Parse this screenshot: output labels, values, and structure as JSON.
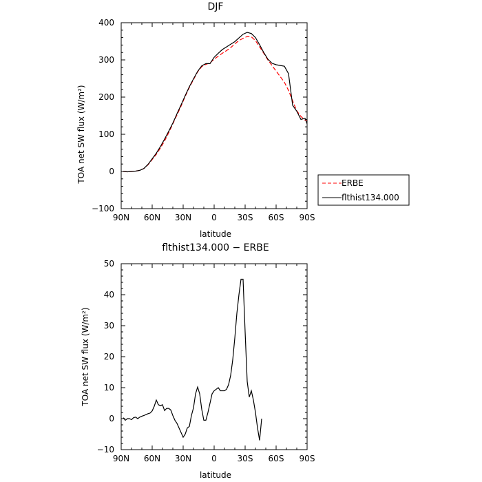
{
  "chart_data": [
    {
      "type": "line",
      "title": "DJF",
      "xlabel": "latitude",
      "ylabel": "TOA net SW flux (W/m²)",
      "xticks": [
        "90N",
        "60N",
        "30N",
        "0",
        "30S",
        "60S",
        "90S"
      ],
      "xlim": [
        -90,
        90
      ],
      "ylim": [
        -100,
        400
      ],
      "yticks": [
        "−100",
        "0",
        "100",
        "200",
        "300",
        "400"
      ],
      "legend_position": "right, outside plot area",
      "series": [
        {
          "name": "ERBE",
          "style": "dashed",
          "color": "#ff0000",
          "points": [
            [
              -88,
              0
            ],
            [
              -84,
              -1
            ],
            [
              -80,
              0
            ],
            [
              -76,
              1
            ],
            [
              -72,
              3
            ],
            [
              -68,
              8
            ],
            [
              -64,
              18
            ],
            [
              -60,
              32
            ],
            [
              -56,
              46
            ],
            [
              -52,
              63
            ],
            [
              -48,
              82
            ],
            [
              -44,
              104
            ],
            [
              -40,
              128
            ],
            [
              -36,
              152
            ],
            [
              -32,
              176
            ],
            [
              -28,
              202
            ],
            [
              -24,
              226
            ],
            [
              -20,
              247
            ],
            [
              -16,
              268
            ],
            [
              -12,
              282
            ],
            [
              -8,
              288
            ],
            [
              -4,
              292
            ],
            [
              0,
              302
            ],
            [
              4,
              310
            ],
            [
              8,
              318
            ],
            [
              12,
              325
            ],
            [
              16,
              333
            ],
            [
              20,
              343
            ],
            [
              24,
              352
            ],
            [
              28,
              358
            ],
            [
              32,
              363
            ],
            [
              36,
              362
            ],
            [
              40,
              352
            ],
            [
              44,
              335
            ],
            [
              48,
              318
            ],
            [
              52,
              300
            ],
            [
              56,
              285
            ],
            [
              60,
              270
            ],
            [
              64,
              255
            ],
            [
              68,
              240
            ],
            [
              72,
              218
            ],
            [
              76,
              190
            ],
            [
              80,
              163
            ],
            [
              84,
              148
            ],
            [
              88,
              138
            ],
            [
              90,
              136
            ]
          ]
        },
        {
          "name": "flthist134.000",
          "style": "solid",
          "color": "#000000",
          "points": [
            [
              -88,
              0
            ],
            [
              -84,
              -1
            ],
            [
              -80,
              0
            ],
            [
              -76,
              1
            ],
            [
              -72,
              3
            ],
            [
              -68,
              8
            ],
            [
              -64,
              19
            ],
            [
              -60,
              34
            ],
            [
              -56,
              49
            ],
            [
              -52,
              67
            ],
            [
              -48,
              87
            ],
            [
              -44,
              108
            ],
            [
              -40,
              130
            ],
            [
              -36,
              155
            ],
            [
              -32,
              179
            ],
            [
              -28,
              204
            ],
            [
              -24,
              228
            ],
            [
              -20,
              249
            ],
            [
              -16,
              269
            ],
            [
              -12,
              284
            ],
            [
              -8,
              290
            ],
            [
              -4,
              290
            ],
            [
              0,
              307
            ],
            [
              4,
              318
            ],
            [
              8,
              328
            ],
            [
              12,
              335
            ],
            [
              16,
              342
            ],
            [
              20,
              349
            ],
            [
              24,
              359
            ],
            [
              28,
              369
            ],
            [
              32,
              374
            ],
            [
              36,
              371
            ],
            [
              40,
              360
            ],
            [
              44,
              341
            ],
            [
              48,
              320
            ],
            [
              52,
              302
            ],
            [
              56,
              291
            ],
            [
              60,
              287
            ],
            [
              64,
              285
            ],
            [
              68,
              283
            ],
            [
              72,
              263
            ],
            [
              76,
              178
            ],
            [
              80,
              162
            ],
            [
              84,
              140
            ],
            [
              88,
              143
            ],
            [
              90,
              128
            ]
          ]
        }
      ]
    },
    {
      "type": "line",
      "title": "flthist134.000 − ERBE",
      "xlabel": "latitude",
      "ylabel": "TOA net SW flux (W/m²)",
      "xticks": [
        "90N",
        "60N",
        "30N",
        "0",
        "30S",
        "60S",
        "90S"
      ],
      "xlim": [
        -90,
        90
      ],
      "ylim": [
        -10,
        50
      ],
      "yticks": [
        "−10",
        "0",
        "10",
        "20",
        "30",
        "40",
        "50"
      ],
      "series": [
        {
          "name": "flthist134.000 − ERBE",
          "style": "solid",
          "color": "#000000",
          "points": [
            [
              -88,
              0.3
            ],
            [
              -86,
              -0.5
            ],
            [
              -84,
              0
            ],
            [
              -82,
              0
            ],
            [
              -80,
              -0.3
            ],
            [
              -78,
              0.3
            ],
            [
              -76,
              0.5
            ],
            [
              -74,
              0
            ],
            [
              -72,
              0.5
            ],
            [
              -70,
              0.8
            ],
            [
              -68,
              1
            ],
            [
              -66,
              1.3
            ],
            [
              -64,
              1.6
            ],
            [
              -62,
              1.8
            ],
            [
              -60,
              2.5
            ],
            [
              -58,
              4
            ],
            [
              -56,
              6
            ],
            [
              -54,
              4.5
            ],
            [
              -52,
              4.2
            ],
            [
              -50,
              4.5
            ],
            [
              -48,
              2.6
            ],
            [
              -46,
              3.3
            ],
            [
              -44,
              3.3
            ],
            [
              -42,
              2.8
            ],
            [
              -40,
              1
            ],
            [
              -38,
              -0.5
            ],
            [
              -36,
              -1.5
            ],
            [
              -34,
              -3
            ],
            [
              -32,
              -4.5
            ],
            [
              -30,
              -6
            ],
            [
              -28,
              -5
            ],
            [
              -26,
              -3
            ],
            [
              -24,
              -2.5
            ],
            [
              -22,
              1
            ],
            [
              -20,
              3.5
            ],
            [
              -18,
              8
            ],
            [
              -16,
              10.2
            ],
            [
              -14,
              8
            ],
            [
              -12,
              3
            ],
            [
              -10,
              -0.5
            ],
            [
              -8,
              -0.5
            ],
            [
              -6,
              2
            ],
            [
              -4,
              5
            ],
            [
              -2,
              8
            ],
            [
              0,
              9
            ],
            [
              2,
              9.5
            ],
            [
              4,
              10
            ],
            [
              6,
              9
            ],
            [
              8,
              9
            ],
            [
              10,
              9
            ],
            [
              12,
              9.5
            ],
            [
              14,
              11
            ],
            [
              16,
              14
            ],
            [
              18,
              19
            ],
            [
              20,
              26
            ],
            [
              22,
              34
            ],
            [
              24,
              40
            ],
            [
              26,
              45
            ],
            [
              28,
              45
            ],
            [
              30,
              28
            ],
            [
              32,
              12
            ],
            [
              34,
              7
            ],
            [
              36,
              9
            ],
            [
              38,
              6
            ],
            [
              40,
              2
            ],
            [
              42,
              -3
            ],
            [
              44,
              -7
            ],
            [
              46,
              0
            ]
          ]
        }
      ]
    }
  ]
}
